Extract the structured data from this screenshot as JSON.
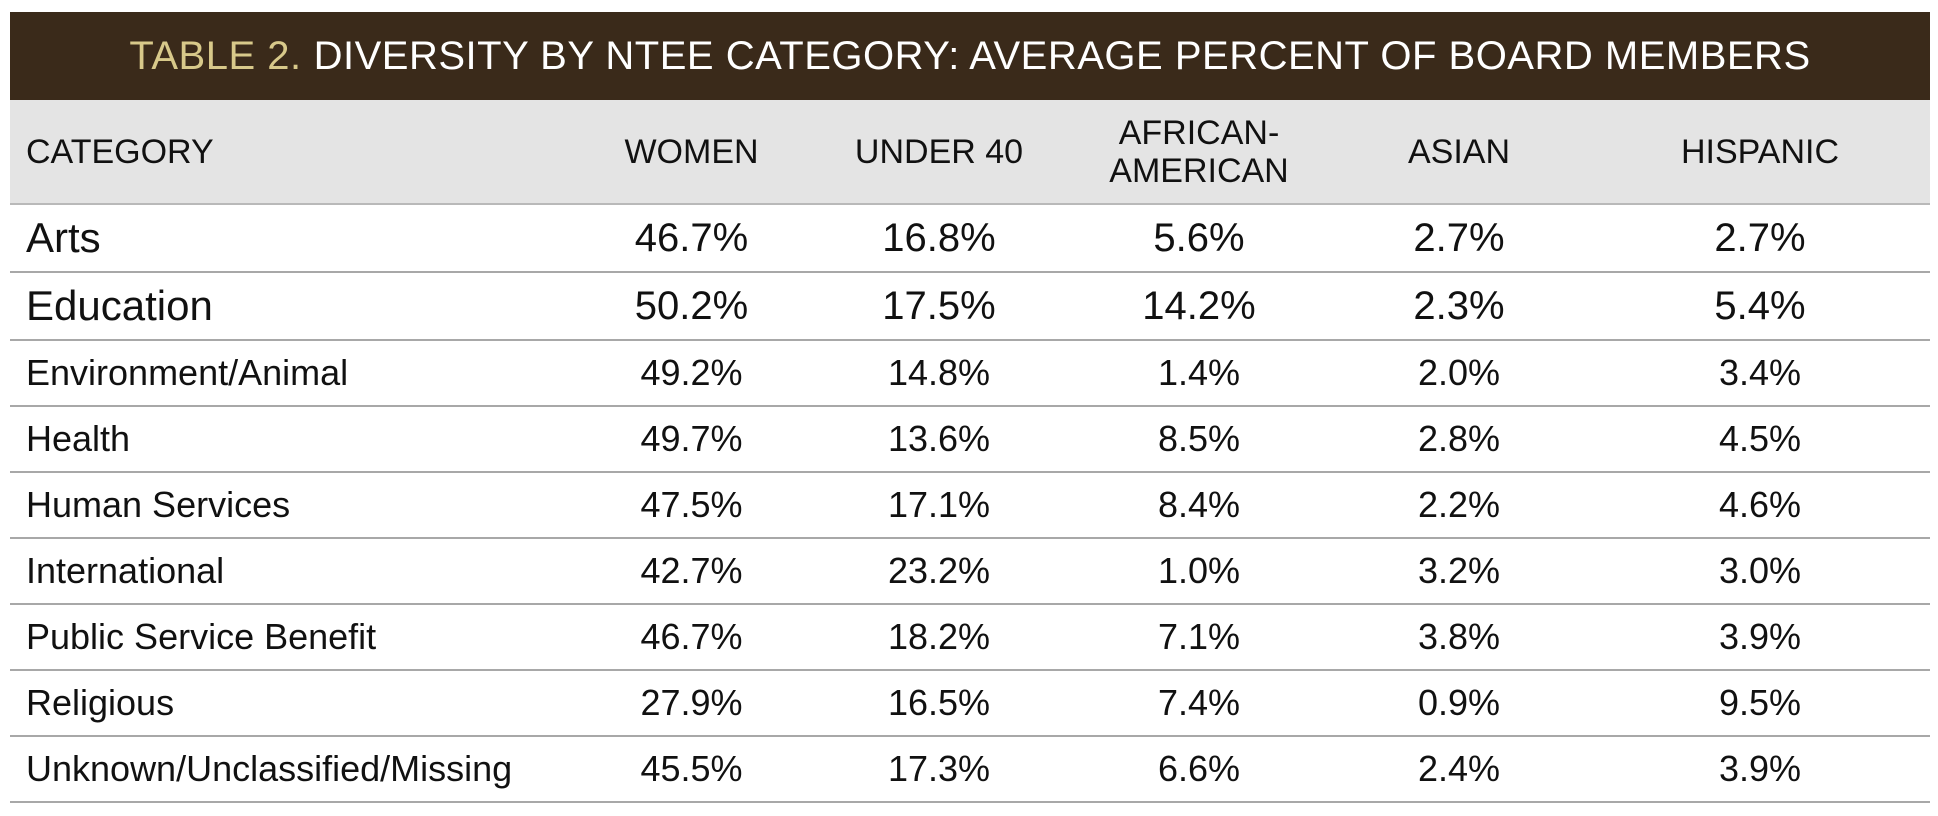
{
  "title": {
    "lead": "TABLE 2.",
    "text": "DIVERSITY BY NTEE CATEGORY: AVERAGE PERCENT OF BOARD MEMBERS"
  },
  "colors": {
    "title_bg": "#3a2a1a",
    "title_lead": "#d8c98a",
    "header_bg": "#e4e4e4"
  },
  "chart_data": {
    "type": "table",
    "columns": [
      "CATEGORY",
      "WOMEN",
      "UNDER 40",
      "AFRICAN-\nAMERICAN",
      "ASIAN",
      "HISPANIC"
    ],
    "rows": [
      [
        "Arts",
        "46.7%",
        "16.8%",
        "5.6%",
        "2.7%",
        "2.7%"
      ],
      [
        "Education",
        "50.2%",
        "17.5%",
        "14.2%",
        "2.3%",
        "5.4%"
      ],
      [
        "Environment/Animal",
        "49.2%",
        "14.8%",
        "1.4%",
        "2.0%",
        "3.4%"
      ],
      [
        "Health",
        "49.7%",
        "13.6%",
        "8.5%",
        "2.8%",
        "4.5%"
      ],
      [
        "Human Services",
        "47.5%",
        "17.1%",
        "8.4%",
        "2.2%",
        "4.6%"
      ],
      [
        "International",
        "42.7%",
        "23.2%",
        "1.0%",
        "3.2%",
        "3.0%"
      ],
      [
        "Public Service Benefit",
        "46.7%",
        "18.2%",
        "7.1%",
        "3.8%",
        "3.9%"
      ],
      [
        "Religious",
        "27.9%",
        "16.5%",
        "7.4%",
        "0.9%",
        "9.5%"
      ],
      [
        "Unknown/Unclassified/Missing",
        "45.5%",
        "17.3%",
        "6.6%",
        "2.4%",
        "3.9%"
      ]
    ]
  }
}
